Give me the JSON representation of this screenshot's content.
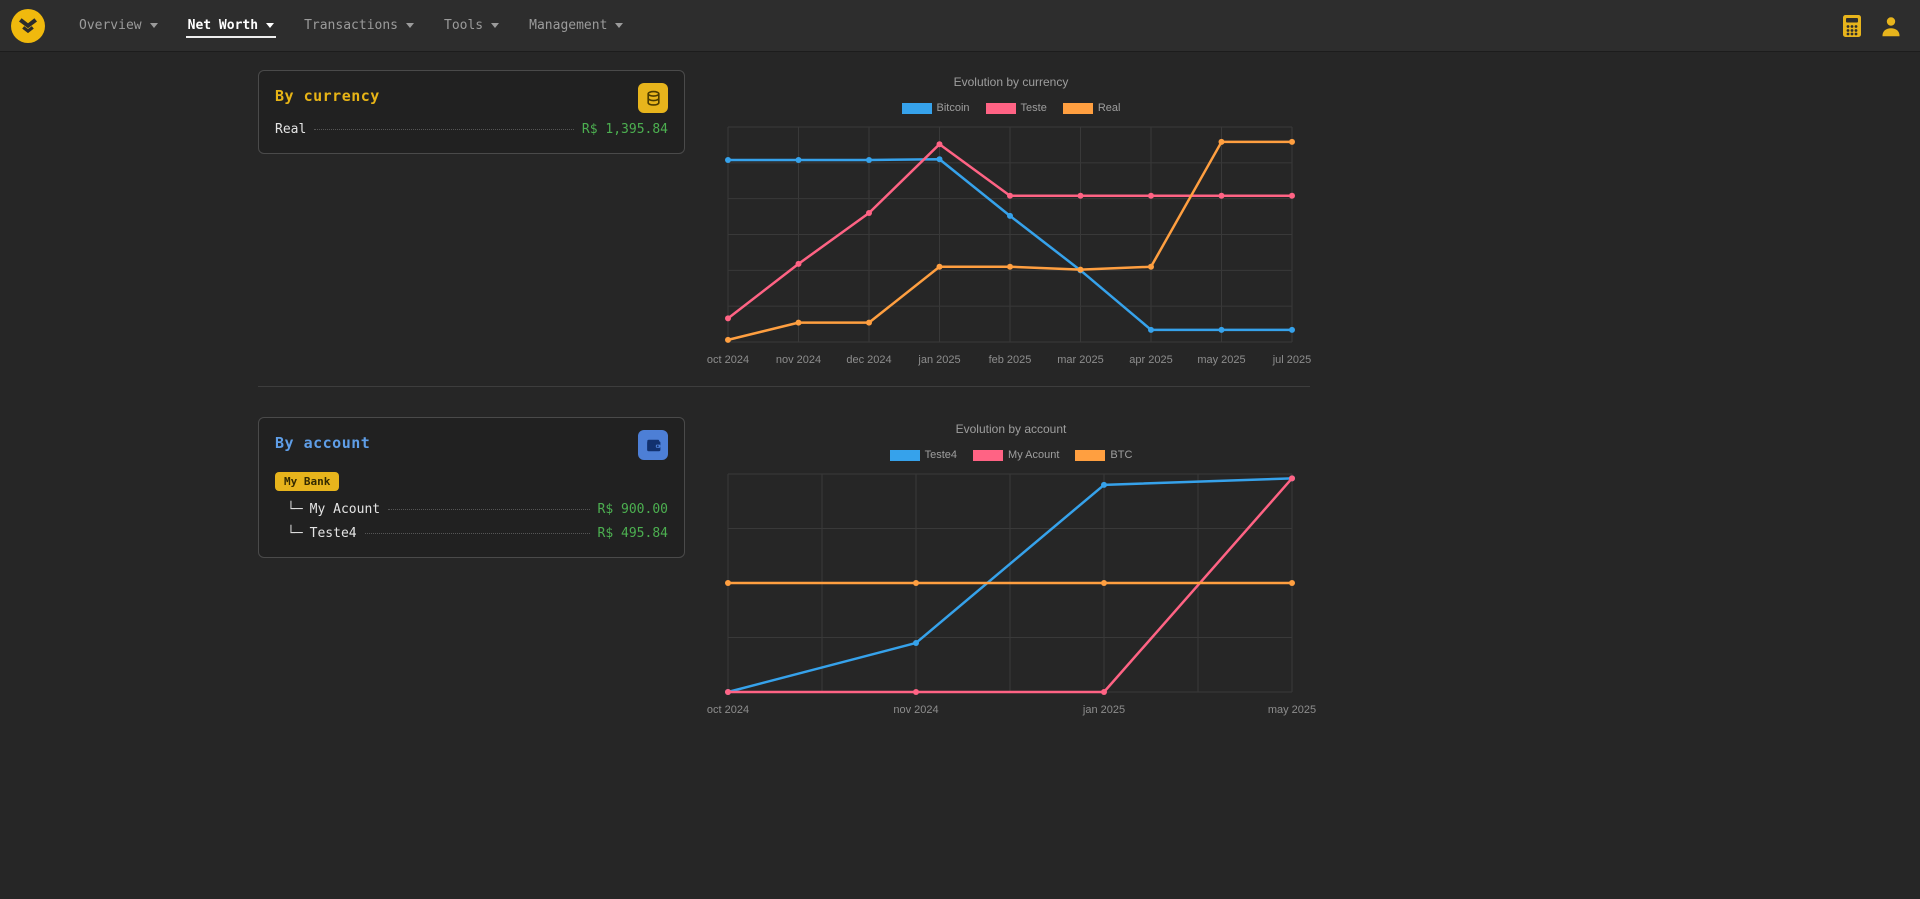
{
  "navbar": {
    "items": [
      {
        "label": "Overview",
        "active": false
      },
      {
        "label": "Net Worth",
        "active": true
      },
      {
        "label": "Transactions",
        "active": false
      },
      {
        "label": "Tools",
        "active": false
      },
      {
        "label": "Management",
        "active": false
      }
    ]
  },
  "sections": {
    "by_currency": {
      "title": "By currency",
      "rows": [
        {
          "label": "Real",
          "value": "R$ 1,395.84"
        }
      ]
    },
    "by_account": {
      "title": "By account",
      "group_badge": "My Bank",
      "rows": [
        {
          "prefix": "└─",
          "label": "My Acount",
          "value": "R$ 900.00"
        },
        {
          "prefix": "└─",
          "label": "Teste4",
          "value": "R$ 495.84"
        }
      ]
    }
  },
  "chart_data": [
    {
      "type": "line",
      "title": "Evolution by currency",
      "categories": [
        "oct 2024",
        "nov 2024",
        "dec 2024",
        "jan 2025",
        "feb 2025",
        "mar 2025",
        "apr 2025",
        "may 2025",
        "jul 2025"
      ],
      "ylim": [
        0,
        1500
      ],
      "grid": true,
      "legend_position": "top",
      "h_gridlines": 7,
      "series": [
        {
          "name": "Bitcoin",
          "color": "#36a2eb",
          "values": [
            1270,
            1270,
            1270,
            1275,
            880,
            500,
            85,
            85,
            85
          ]
        },
        {
          "name": "Teste",
          "color": "#ff6384",
          "values": [
            165,
            545,
            900,
            1380,
            1020,
            1020,
            1020,
            1020,
            1020
          ]
        },
        {
          "name": "Real",
          "color": "#ff9f40",
          "values": [
            15,
            135,
            135,
            525,
            525,
            505,
            525,
            1395.84,
            1395.84
          ]
        }
      ]
    },
    {
      "type": "line",
      "title": "Evolution by account",
      "categories": [
        "oct 2024",
        "nov 2024",
        "jan 2025",
        "may 2025"
      ],
      "ylim": [
        0,
        1000
      ],
      "grid": true,
      "legend_position": "top",
      "h_gridlines": 5,
      "v_gridlines": 7,
      "series": [
        {
          "name": "Teste4",
          "color": "#36a2eb",
          "values": [
            0,
            225,
            950,
            980
          ]
        },
        {
          "name": "My Acount",
          "color": "#ff6384",
          "values": [
            0,
            0,
            0,
            980
          ]
        },
        {
          "name": "BTC",
          "color": "#ff9f40",
          "values": [
            500,
            500,
            500,
            500
          ]
        }
      ]
    }
  ],
  "colors": {
    "background": "#262626",
    "navbar_background": "#2d2d2d",
    "card_background": "#212121",
    "card_border": "#4a4a4a",
    "accent_yellow": "#e7b416",
    "accent_blue": "#5f9ee7",
    "value_green": "#4caf50",
    "series_blue": "#36a2eb",
    "series_pink": "#ff6384",
    "series_orange": "#ff9f40",
    "muted_text": "#9e9e9e"
  }
}
